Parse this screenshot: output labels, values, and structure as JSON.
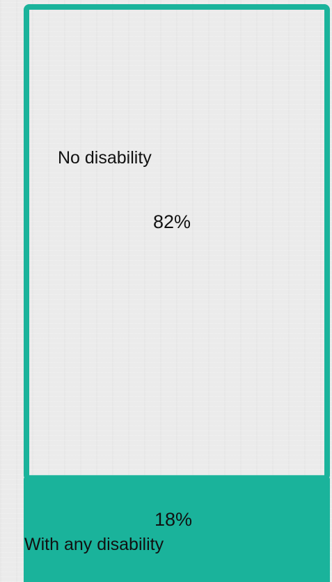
{
  "chart_data": {
    "type": "bar",
    "orientation": "stacked-vertical",
    "categories": [
      "No disability",
      "With any disability"
    ],
    "values": [
      82,
      18
    ],
    "value_labels": [
      "82%",
      "18%"
    ],
    "unit": "%",
    "colors": {
      "accent": "#1ab39b",
      "background": "#ebebeb"
    }
  }
}
